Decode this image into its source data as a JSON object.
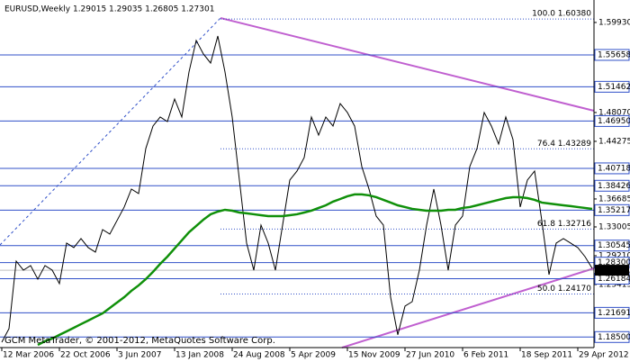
{
  "chart_data": {
    "type": "line",
    "title": "EURUSD,Weekly  1.29015 1.29035 1.26805 1.27301",
    "footer": "GCM MetaTrader, © 2001-2012, MetaQuotes Software Corp.",
    "categories": [
      "12 Mar 2006",
      null,
      null,
      null,
      null,
      null,
      null,
      null,
      "22 Oct 2006",
      null,
      null,
      null,
      null,
      null,
      null,
      null,
      "3 Jun 2007",
      null,
      null,
      null,
      null,
      null,
      null,
      null,
      "13 Jan 2008",
      null,
      null,
      null,
      null,
      null,
      null,
      null,
      "24 Aug 2008",
      null,
      null,
      null,
      null,
      null,
      null,
      null,
      "5 Apr 2009",
      null,
      null,
      null,
      null,
      null,
      null,
      null,
      "15 Nov 2009",
      null,
      null,
      null,
      null,
      null,
      null,
      null,
      "27 Jun 2010",
      null,
      null,
      null,
      null,
      null,
      null,
      null,
      "6 Feb 2011",
      null,
      null,
      null,
      null,
      null,
      null,
      null,
      "18 Sep 2011",
      null,
      null,
      null,
      null,
      null,
      null,
      null,
      "29 Apr 2012",
      null,
      null
    ],
    "series": [
      {
        "color": "#000000",
        "values": [
          1.1782,
          1.196,
          1.285,
          1.2731,
          1.2791,
          1.2613,
          1.2791,
          1.2731,
          1.2553,
          1.3087,
          1.3028,
          1.3147,
          1.3028,
          1.2969,
          1.3265,
          1.3206,
          1.3384,
          1.3562,
          1.3799,
          1.374,
          1.4333,
          1.4629,
          1.4748,
          1.4688,
          1.4985,
          1.4748,
          1.5341,
          1.5756,
          1.5578,
          1.5459,
          1.5815,
          1.5341,
          1.4748,
          1.3917,
          1.3087,
          1.2731,
          1.3324,
          1.3087,
          1.2731,
          1.3324,
          1.3917,
          1.4036,
          1.4214,
          1.4748,
          1.451,
          1.4748,
          1.4629,
          1.4925,
          1.4807,
          1.4629,
          1.4095,
          1.3799,
          1.3443,
          1.3324,
          1.2375,
          1.188,
          1.2257,
          1.2316,
          1.2731,
          1.3324,
          1.3799,
          1.3324,
          1.2731,
          1.3324,
          1.3443,
          1.4095,
          1.4333,
          1.4807,
          1.4629,
          1.4392,
          1.4748,
          1.4451,
          1.3562,
          1.3917,
          1.4036,
          1.3384,
          1.2672,
          1.3087,
          1.3147,
          1.3087,
          1.3028,
          1.2909,
          1.2755
        ]
      },
      {
        "color": "#10900a",
        "values": [
          null,
          null,
          null,
          null,
          null,
          1.1747,
          1.1795,
          1.183,
          1.1878,
          1.1925,
          1.1972,
          1.202,
          1.2067,
          1.2115,
          1.2162,
          1.2233,
          1.2304,
          1.2375,
          1.2459,
          1.253,
          1.2613,
          1.2708,
          1.2814,
          1.2909,
          1.3016,
          1.3123,
          1.323,
          1.3313,
          1.3396,
          1.3467,
          1.3502,
          1.3526,
          1.3514,
          1.349,
          1.3479,
          1.3467,
          1.3455,
          1.3443,
          1.3443,
          1.3443,
          1.3455,
          1.3467,
          1.349,
          1.3514,
          1.355,
          1.3585,
          1.3633,
          1.3668,
          1.3704,
          1.3728,
          1.3728,
          1.3716,
          1.3692,
          1.3657,
          1.3621,
          1.3585,
          1.3562,
          1.3538,
          1.3526,
          1.3514,
          1.3514,
          1.3514,
          1.3526,
          1.3526,
          1.355,
          1.3562,
          1.3585,
          1.3609,
          1.3633,
          1.3657,
          1.368,
          1.3692,
          1.3692,
          1.368,
          1.3657,
          1.3621,
          1.3609,
          1.3597,
          1.3585,
          1.3574,
          1.3562,
          1.355,
          1.3538
        ]
      }
    ],
    "ylim": [
      1.1711,
      1.6289
    ],
    "yticks": [
      {
        "value": 1.5993,
        "label": "1.59930"
      },
      {
        "value": 1.4807,
        "label": "1.48070"
      },
      1.44275,
      1.36685,
      1.33005,
      {
        "value": 1.2921,
        "label": "1.29210"
      },
      1.25415
    ],
    "levels": [
      1.55658,
      1.51462,
      {
        "value": 1.4695,
        "label": "1.46950"
      },
      1.40718,
      1.38426,
      1.35217,
      1.30545,
      {
        "value": 1.283,
        "label": "1.28300"
      },
      1.26184,
      1.21691,
      {
        "value": 1.185,
        "label": "1.18500"
      }
    ],
    "fib_levels": [
      {
        "value": 1.6038,
        "label": "100.0 1.60380"
      },
      {
        "value": 1.43289,
        "label": "76.4 1.43289"
      },
      {
        "value": 1.32716,
        "label": "61.8 1.32716"
      },
      {
        "value": 1.2417,
        "label": "50.0 1.24170"
      }
    ],
    "current_price": 1.27301,
    "level_color": "#3050c8"
  }
}
